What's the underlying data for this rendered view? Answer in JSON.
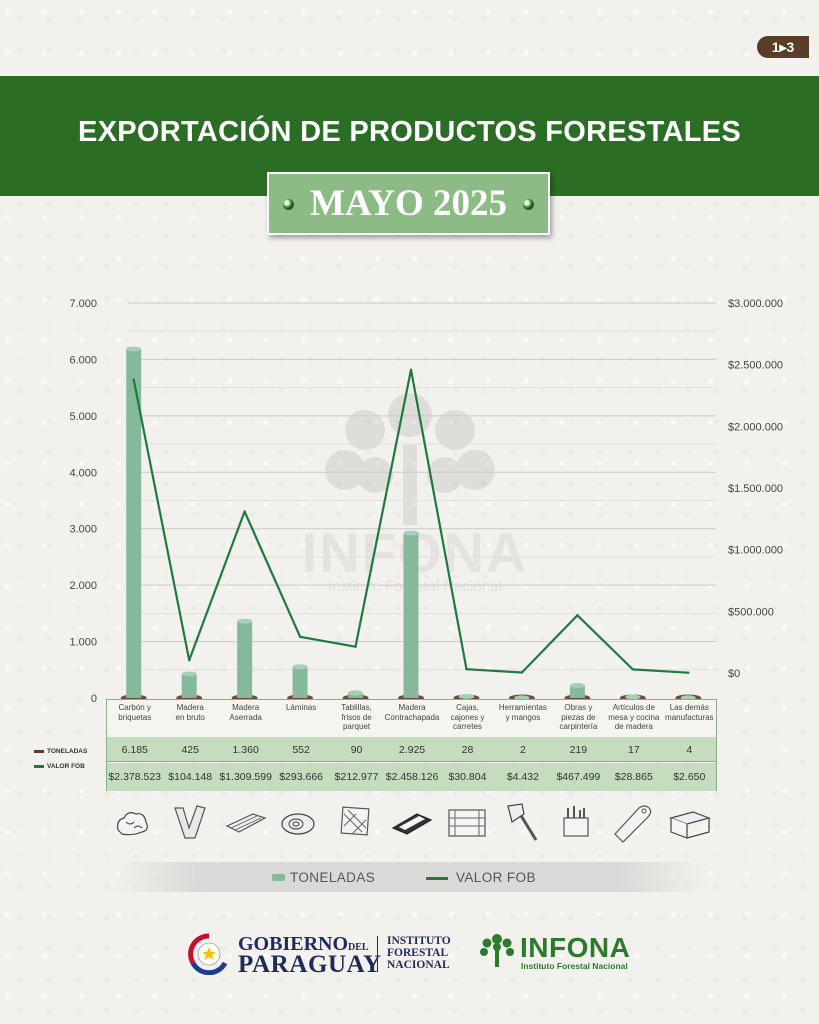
{
  "page_badge": "1▸3",
  "header": {
    "title": "EXPORTACIÓN DE PRODUCTOS FORESTALES",
    "subtitle": "MAYO 2025"
  },
  "colors": {
    "header_green": "#2c6d25",
    "subtitle_box": "#8dbb86",
    "bar": "#86b99c",
    "line": "#1f7a3e",
    "table_fill": "#c5dcbf",
    "badge": "#5a3d26"
  },
  "chart_data": {
    "type": "bar",
    "categories": [
      "Carbón y briquetas",
      "Madera en bruto",
      "Madera Aserrada",
      "Láminas",
      "Tablillas, frisos de parquet",
      "Madera Contrachapada",
      "Cajas, cajones y carretes",
      "Herramientas y mangos",
      "Obras y piezas de carpintería",
      "Artículos de mesa y cocina de madera",
      "Las demás manufacturas"
    ],
    "category_lines": [
      [
        "Carbón y",
        "briquetas"
      ],
      [
        "Madera",
        "en bruto"
      ],
      [
        "Madera",
        "Aserrada"
      ],
      [
        "Láminas"
      ],
      [
        "Tablillas,",
        "frisos de",
        "parquet"
      ],
      [
        "Madera",
        "Contrachapada"
      ],
      [
        "Cajas,",
        "cajones y",
        "carretes"
      ],
      [
        "Herramientas",
        "y mangos"
      ],
      [
        "Obras y",
        "piezas de",
        "carpintería"
      ],
      [
        "Artículos de",
        "mesa y cocina",
        "de madera"
      ],
      [
        "Las demás",
        "manufacturas"
      ]
    ],
    "series": [
      {
        "name": "TONELADAS",
        "kind": "bar",
        "axis": "left",
        "values": [
          6185,
          425,
          1360,
          552,
          90,
          2925,
          28,
          2,
          219,
          17,
          4
        ],
        "labels": [
          "6.185",
          "425",
          "1.360",
          "552",
          "90",
          "2.925",
          "28",
          "2",
          "219",
          "17",
          "4"
        ]
      },
      {
        "name": "VALOR FOB",
        "kind": "line",
        "axis": "right",
        "values": [
          2378523,
          104148,
          1309599,
          293666,
          212977,
          2458126,
          30804,
          4432,
          467499,
          28865,
          2650
        ],
        "labels": [
          "$2.378.523",
          "$104.148",
          "$1.309.599",
          "$293.666",
          "$212.977",
          "$2.458.126",
          "$30.804",
          "$4.432",
          "$467.499",
          "$28.865",
          "$2.650"
        ]
      }
    ],
    "y_left": {
      "ticks": [
        "7.000",
        "6.000",
        "5.000",
        "4.000",
        "3.000",
        "2.000",
        "1.000",
        "0"
      ]
    },
    "y_right": {
      "ticks": [
        "$3.000.000",
        "$2.500.000",
        "$2.000.000",
        "$1.500.000",
        "$1.000.000",
        "$500.000",
        "$0"
      ]
    },
    "grid": true
  },
  "legend": {
    "toneladas": "TONELADAS",
    "valor_fob": "VALOR FOB"
  },
  "table_labels": {
    "toneladas": "TONELADAS",
    "valor_fob": "VALOR FOB"
  },
  "icons": [
    "charcoal-icon",
    "log-icon",
    "sawn-wood-icon",
    "veneer-roll-icon",
    "parquet-icon",
    "plywood-icon",
    "crate-icon",
    "axe-icon",
    "carpentry-tools-icon",
    "cutting-board-icon",
    "toolbox-icon"
  ],
  "footer": {
    "gob_word": "GOBIERNO",
    "gob_del": "DEL",
    "paraguay": "PARAGUAY",
    "instituto_lines": [
      "INSTITUTO",
      "FORESTAL",
      "NACIONAL"
    ],
    "infona": "INFONA",
    "infona_sub": "Instituto Forestal Nacional"
  },
  "watermark": {
    "name": "INFONA",
    "sub": "Instituto Forestal Nacional"
  }
}
